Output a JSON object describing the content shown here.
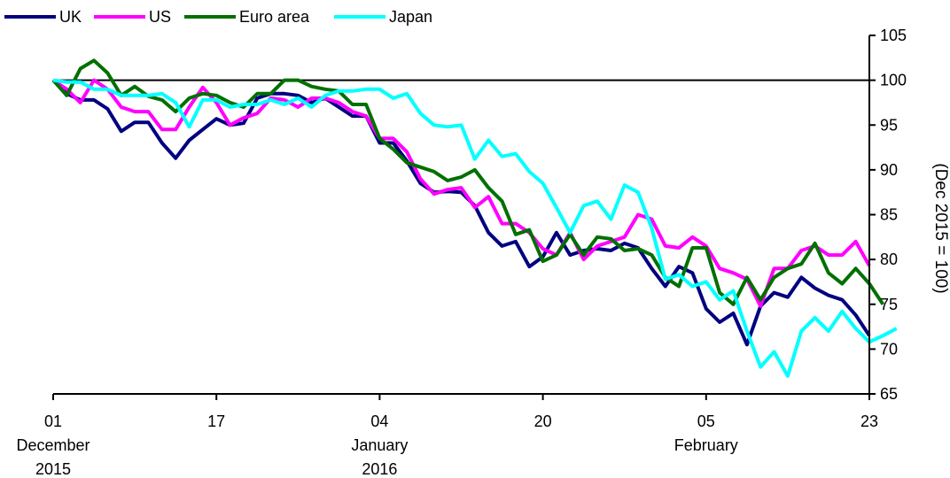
{
  "chart_data": {
    "type": "line",
    "title": "",
    "ylabel": "(Dec 2015 = 100)",
    "ylim": [
      65,
      105
    ],
    "yticks": [
      65,
      70,
      75,
      80,
      85,
      90,
      95,
      100,
      105
    ],
    "y_axis_side": "right",
    "reference_line": 100,
    "legend_position": "top-left",
    "x_ticks": [
      {
        "lines": [
          "01",
          "December",
          "2015"
        ],
        "index": 0
      },
      {
        "lines": [
          "17"
        ],
        "index": 12
      },
      {
        "lines": [
          "04",
          "January",
          "2016"
        ],
        "index": 24
      },
      {
        "lines": [
          "20"
        ],
        "index": 36
      },
      {
        "lines": [
          "05",
          "February"
        ],
        "index": 48
      },
      {
        "lines": [
          "23"
        ],
        "index": 60
      }
    ],
    "series": [
      {
        "name": "UK",
        "color": "#000080",
        "values": [
          100.0,
          98.5,
          97.8,
          97.8,
          96.8,
          94.3,
          95.3,
          95.3,
          93.0,
          91.3,
          93.3,
          94.5,
          95.7,
          95.0,
          95.2,
          98.0,
          98.5,
          98.5,
          98.3,
          97.5,
          98.0,
          97.0,
          96.0,
          96.0,
          93.0,
          93.0,
          91.0,
          88.5,
          87.5,
          87.6,
          87.5,
          86.0,
          83.0,
          81.5,
          82.0,
          79.2,
          80.3,
          83.0,
          80.5,
          81.0,
          81.2,
          81.0,
          81.8,
          81.3,
          79.0,
          77.0,
          79.2,
          78.5,
          74.5,
          73.0,
          74.0,
          70.5,
          74.8,
          76.3,
          75.8,
          78.0,
          76.8,
          76.0,
          75.5,
          73.8,
          71.5
        ]
      },
      {
        "name": "US",
        "color": "#FF00FF",
        "values": [
          100.0,
          99.0,
          97.5,
          100.0,
          99.0,
          97.0,
          96.5,
          96.5,
          94.5,
          94.5,
          97.0,
          99.2,
          97.5,
          95.0,
          95.8,
          96.3,
          98.0,
          97.8,
          97.0,
          98.0,
          98.0,
          97.5,
          96.5,
          96.0,
          93.5,
          93.5,
          92.0,
          89.0,
          87.3,
          87.8,
          88.0,
          85.8,
          87.0,
          84.0,
          84.0,
          83.0,
          81.2,
          80.5,
          83.0,
          80.0,
          81.5,
          82.0,
          82.5,
          85.0,
          84.5,
          81.5,
          81.3,
          82.5,
          81.5,
          79.0,
          78.5,
          77.8,
          74.8,
          79.0,
          79.0,
          81.0,
          81.5,
          80.5,
          80.5,
          82.0,
          79.3
        ]
      },
      {
        "name": "Euro area",
        "color": "#007000",
        "values": [
          100.0,
          98.3,
          101.3,
          102.2,
          100.8,
          98.3,
          99.3,
          98.2,
          97.8,
          96.5,
          98.0,
          98.5,
          98.3,
          97.5,
          97.0,
          98.5,
          98.5,
          100.0,
          100.0,
          99.3,
          99.0,
          98.8,
          97.3,
          97.3,
          93.5,
          92.3,
          90.8,
          90.3,
          89.8,
          88.8,
          89.2,
          90.0,
          88.0,
          86.5,
          82.8,
          83.3,
          79.8,
          80.5,
          82.8,
          80.5,
          82.5,
          82.3,
          81.0,
          81.2,
          80.5,
          78.0,
          77.0,
          81.3,
          81.3,
          76.3,
          75.0,
          78.0,
          75.5,
          78.0,
          79.0,
          79.5,
          81.8,
          78.5,
          77.3,
          79.0,
          77.3,
          75.0
        ]
      },
      {
        "name": "Japan",
        "color": "#00FFFF",
        "values": [
          100.0,
          99.8,
          99.8,
          99.0,
          99.0,
          98.3,
          98.3,
          98.3,
          98.5,
          97.5,
          94.8,
          97.8,
          97.8,
          97.0,
          97.3,
          97.3,
          97.8,
          97.3,
          98.0,
          97.0,
          98.3,
          98.8,
          98.8,
          99.0,
          99.0,
          98.0,
          98.5,
          96.3,
          95.0,
          94.8,
          95.0,
          91.2,
          93.3,
          91.5,
          91.8,
          89.8,
          88.5,
          85.8,
          83.0,
          86.0,
          86.5,
          84.5,
          88.3,
          87.5,
          83.5,
          77.8,
          78.3,
          77.0,
          77.5,
          75.5,
          76.5,
          72.0,
          68.0,
          69.7,
          67.0,
          72.0,
          73.5,
          72.0,
          74.2,
          72.3,
          70.8,
          71.5,
          72.3
        ]
      }
    ]
  }
}
